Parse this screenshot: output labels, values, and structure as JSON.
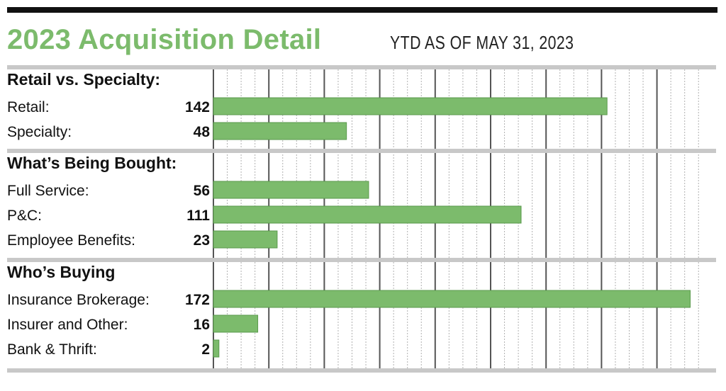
{
  "title": "2023 Acquisition Detail",
  "subtitle": "YTD AS OF MAY 31, 2023",
  "colors": {
    "bar": "#7cbb6c",
    "bar_stroke": "#5a9a4c",
    "title": "#7cbb6c",
    "divider": "#c8c8c8",
    "grid_minor": "#b0b0b0",
    "grid_major": "#555555",
    "top_rule": "#111111"
  },
  "chart_data": {
    "type": "bar",
    "orientation": "horizontal",
    "xlim": [
      0,
      176
    ],
    "grid": true,
    "grid_step": 5,
    "major_grid_every": 20,
    "groups": [
      {
        "title": "Retail vs. Specialty:",
        "items": [
          {
            "label": "Retail:",
            "value": 142,
            "value_label": "142"
          },
          {
            "label": "Specialty:",
            "value": 48,
            "value_label": "48"
          }
        ]
      },
      {
        "title": "What’s Being Bought:",
        "items": [
          {
            "label": "Full Service:",
            "value": 56,
            "value_label": "56"
          },
          {
            "label": "P&C:",
            "value": 111,
            "value_label": "111"
          },
          {
            "label": "Employee Benefits:",
            "value": 23,
            "value_label": "23"
          }
        ]
      },
      {
        "title": "Who’s Buying",
        "items": [
          {
            "label": "Insurance Brokerage:",
            "value": 172,
            "value_label": "172"
          },
          {
            "label": "Insurer and Other:",
            "value": 16,
            "value_label": "16"
          },
          {
            "label": "Bank & Thrift:",
            "value": 2,
            "value_label": "2"
          }
        ]
      }
    ]
  }
}
